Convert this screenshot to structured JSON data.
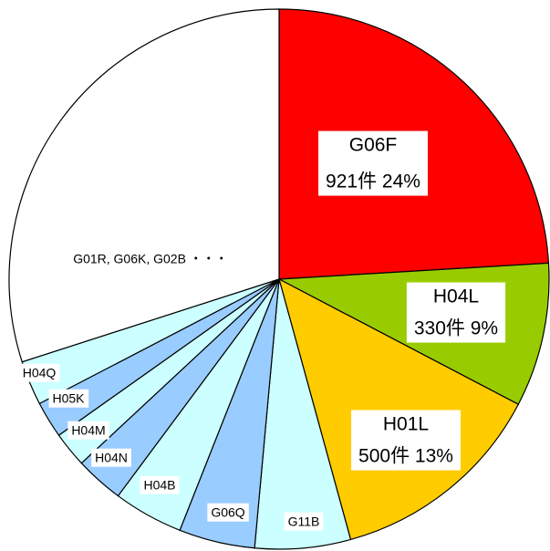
{
  "chart_data": {
    "type": "pie",
    "categories": [
      "G06F",
      "H04L",
      "H01L",
      "G11B",
      "G06Q",
      "H04B",
      "H04N",
      "H04M",
      "H05K",
      "H04Q",
      "G01R, G06K, G02B ・・・"
    ],
    "values": [
      921,
      330,
      500,
      219,
      174,
      160,
      111,
      81,
      84,
      102,
      1147
    ],
    "value_labels": [
      "921件 24%",
      "330件 9%",
      "500件 13%",
      null,
      null,
      null,
      null,
      null,
      null,
      null,
      null
    ],
    "colors": [
      "#ff0000",
      "#99cc00",
      "#ffcc00",
      "#ccffff",
      "#99ccff",
      "#ccffff",
      "#99ccff",
      "#ccffff",
      "#99ccff",
      "#ccffff",
      "#ffffff"
    ]
  }
}
